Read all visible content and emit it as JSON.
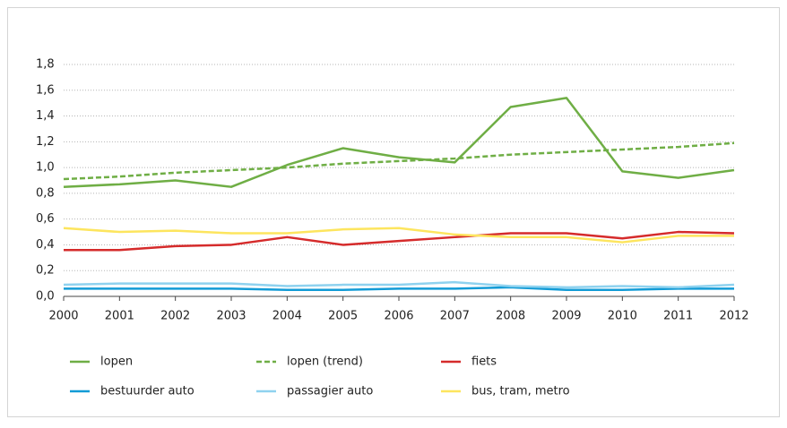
{
  "chart_data": {
    "type": "line",
    "x": [
      2000,
      2001,
      2002,
      2003,
      2004,
      2005,
      2006,
      2007,
      2008,
      2009,
      2010,
      2011,
      2012
    ],
    "xlim": [
      2000,
      2012
    ],
    "xticks": [
      2000,
      2001,
      2002,
      2003,
      2004,
      2005,
      2006,
      2007,
      2008,
      2009,
      2010,
      2011,
      2012
    ],
    "ylim": [
      0,
      1.8
    ],
    "yticks": [
      {
        "value": 0,
        "label": "0,0"
      },
      {
        "value": 0.2,
        "label": "0,2"
      },
      {
        "value": 0.4,
        "label": "0,4"
      },
      {
        "value": 0.6,
        "label": "0,6"
      },
      {
        "value": 0.8,
        "label": "0,8"
      },
      {
        "value": 1.0,
        "label": "1,0"
      },
      {
        "value": 1.2,
        "label": "1,2"
      },
      {
        "value": 1.4,
        "label": "1,4"
      },
      {
        "value": 1.6,
        "label": "1,6"
      },
      {
        "value": 1.8,
        "label": "1,8"
      }
    ],
    "grid": true,
    "legend": "bottom",
    "series": [
      {
        "name": "lopen",
        "color": "#6fae45",
        "values": [
          0.85,
          0.87,
          0.9,
          0.85,
          1.02,
          1.15,
          1.08,
          1.04,
          1.47,
          1.54,
          0.97,
          0.92,
          0.98
        ]
      },
      {
        "name": "lopen (trend)",
        "color": "#6fae45",
        "dashed": true,
        "values": [
          0.91,
          0.93,
          0.96,
          0.98,
          1.0,
          1.03,
          1.05,
          1.07,
          1.1,
          1.12,
          1.14,
          1.16,
          1.19
        ]
      },
      {
        "name": "fiets",
        "color": "#d52b2b",
        "values": [
          0.36,
          0.36,
          0.39,
          0.4,
          0.46,
          0.4,
          0.43,
          0.46,
          0.49,
          0.49,
          0.45,
          0.5,
          0.49
        ]
      },
      {
        "name": "bestuurder auto",
        "color": "#129bd6",
        "values": [
          0.06,
          0.06,
          0.06,
          0.06,
          0.05,
          0.05,
          0.06,
          0.06,
          0.07,
          0.05,
          0.05,
          0.06,
          0.06
        ]
      },
      {
        "name": "passagier auto",
        "color": "#8fd2ef",
        "values": [
          0.09,
          0.1,
          0.1,
          0.1,
          0.08,
          0.09,
          0.09,
          0.11,
          0.08,
          0.07,
          0.08,
          0.07,
          0.09
        ]
      },
      {
        "name": "bus, tram, metro",
        "color": "#fde55e",
        "values": [
          0.53,
          0.5,
          0.51,
          0.49,
          0.49,
          0.52,
          0.53,
          0.48,
          0.46,
          0.46,
          0.42,
          0.47,
          0.47
        ]
      }
    ]
  }
}
